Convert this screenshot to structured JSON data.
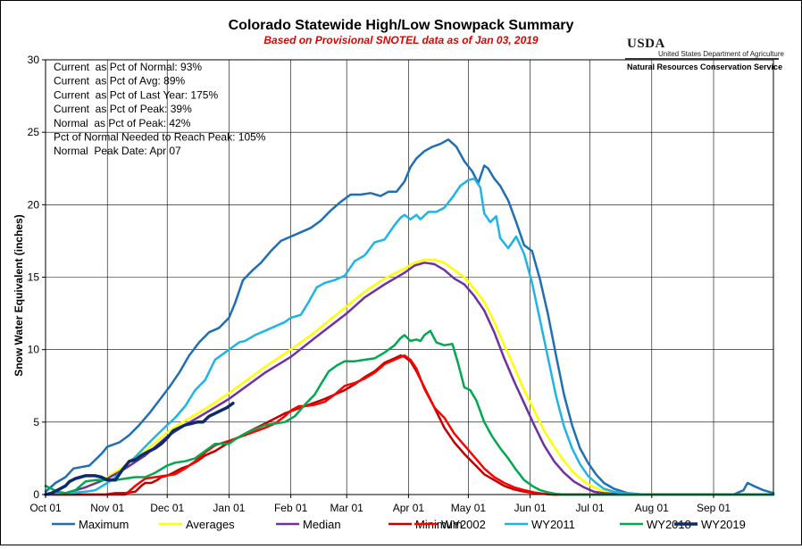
{
  "chart_data": {
    "type": "line",
    "title": "Colorado Statewide High/Low Snowpack Summary",
    "subtitle": "Based on Provisional SNOTEL data as of Jan 03, 2019",
    "ylabel": "Snow Water Equivalent (inches)",
    "xlabel": "",
    "ylim": [
      0,
      30
    ],
    "yticks": [
      "0",
      "5",
      "10",
      "15",
      "20",
      "25",
      "30"
    ],
    "xlim_days": [
      0,
      365
    ],
    "xticks": [
      "Oct 01",
      "Nov 01",
      "Dec 01",
      "Jan 01",
      "Feb 01",
      "Mar 01",
      "Apr 01",
      "May 01",
      "Jun 01",
      "Jul 01",
      "Aug 01",
      "Sep 01"
    ],
    "xtick_days": [
      0,
      31,
      61,
      92,
      123,
      151,
      182,
      212,
      243,
      273,
      304,
      335
    ],
    "grid": true,
    "legend_position": "bottom",
    "stats": [
      "Current  as Pct of Normal: 93%",
      "Current  as Pct of Avg: 89%",
      "Current  as Pct of Last Year: 175%",
      "Current  as Pct of Peak: 39%",
      "Normal  as Pct of Peak: 42%",
      "Pct of Normal Needed to Reach Peak: 105%",
      "Normal  Peak Date: Apr 07"
    ],
    "series": [
      {
        "name": "Maximum",
        "color": "#1F6FB4",
        "width": 2.5,
        "x": [
          0,
          5,
          10,
          14,
          18,
          22,
          25,
          28,
          31,
          33,
          37,
          42,
          47,
          52,
          57,
          62,
          67,
          72,
          77,
          82,
          87,
          92,
          95,
          99,
          104,
          108,
          113,
          118,
          123,
          128,
          133,
          138,
          143,
          148,
          153,
          158,
          163,
          168,
          172,
          176,
          180,
          183,
          186,
          190,
          194,
          198,
          202,
          206,
          210,
          214,
          217,
          220,
          222,
          225,
          228,
          232,
          236,
          240,
          244,
          248,
          252,
          256,
          260,
          264,
          268,
          272,
          276,
          280,
          285,
          292,
          300,
          310,
          320,
          330,
          340,
          345,
          350,
          352,
          355,
          360,
          365
        ],
        "y": [
          0.2,
          0.8,
          1.2,
          1.8,
          1.9,
          2.0,
          2.4,
          2.8,
          3.3,
          3.4,
          3.6,
          4.1,
          4.8,
          5.6,
          6.5,
          7.4,
          8.4,
          9.6,
          10.5,
          11.2,
          11.5,
          12.2,
          13.2,
          14.8,
          15.5,
          16.0,
          16.8,
          17.5,
          17.8,
          18.1,
          18.4,
          18.9,
          19.6,
          20.2,
          20.7,
          20.7,
          20.8,
          20.6,
          20.9,
          20.9,
          21.6,
          22.6,
          23.2,
          23.7,
          24.0,
          24.2,
          24.5,
          24.0,
          23.0,
          22.3,
          21.5,
          22.7,
          22.5,
          21.8,
          21.3,
          20.3,
          18.8,
          17.2,
          16.8,
          14.8,
          12.4,
          9.6,
          6.9,
          4.8,
          3.2,
          2.2,
          1.4,
          0.8,
          0.4,
          0.1,
          0,
          0,
          0,
          0,
          0,
          0,
          0.3,
          0.8,
          0.6,
          0.3,
          0.1
        ]
      },
      {
        "name": "Averages",
        "color": "#FFFF00",
        "width": 2.5,
        "x": [
          0,
          10,
          20,
          31,
          40,
          50,
          61,
          70,
          80,
          92,
          100,
          110,
          123,
          135,
          151,
          160,
          170,
          180,
          185,
          190,
          195,
          200,
          205,
          210,
          215,
          220,
          225,
          230,
          235,
          240,
          245,
          250,
          255,
          260,
          265,
          270,
          275,
          280,
          290,
          300,
          320,
          365
        ],
        "y": [
          0,
          0.1,
          0.5,
          1.2,
          2.0,
          3.0,
          4.3,
          5.1,
          5.9,
          7.0,
          7.8,
          8.8,
          10.0,
          11.2,
          13.0,
          14.0,
          14.9,
          15.6,
          16.0,
          16.2,
          16.2,
          16.0,
          15.5,
          15.0,
          14.2,
          13.3,
          11.9,
          10.3,
          8.8,
          7.2,
          5.8,
          4.4,
          3.3,
          2.3,
          1.5,
          0.9,
          0.5,
          0.25,
          0.05,
          0,
          0,
          0
        ]
      },
      {
        "name": "Median",
        "color": "#7030A0",
        "width": 2.5,
        "x": [
          0,
          10,
          20,
          31,
          40,
          50,
          61,
          70,
          80,
          92,
          100,
          110,
          123,
          135,
          151,
          160,
          170,
          180,
          185,
          190,
          195,
          200,
          205,
          210,
          215,
          220,
          225,
          230,
          235,
          240,
          245,
          250,
          255,
          260,
          265,
          270,
          275,
          280,
          290,
          300,
          320,
          365
        ],
        "y": [
          0,
          0.1,
          0.5,
          1.1,
          1.8,
          2.7,
          4.0,
          4.8,
          5.6,
          6.6,
          7.4,
          8.4,
          9.5,
          10.8,
          12.5,
          13.6,
          14.5,
          15.3,
          15.8,
          16.0,
          15.9,
          15.5,
          14.9,
          14.5,
          13.7,
          12.7,
          11.2,
          9.4,
          7.8,
          6.3,
          4.8,
          3.4,
          2.3,
          1.5,
          0.9,
          0.5,
          0.2,
          0.1,
          0,
          0,
          0,
          0
        ]
      },
      {
        "name": "Minimum",
        "color": "#C00000",
        "width": 2.5,
        "x": [
          0,
          20,
          30,
          35,
          40,
          45,
          48,
          50,
          53,
          56,
          58,
          61,
          64,
          68,
          72,
          76,
          80,
          85,
          92,
          100,
          110,
          120,
          130,
          140,
          150,
          155,
          160,
          165,
          170,
          175,
          178,
          180,
          183,
          186,
          190,
          195,
          200,
          205,
          210,
          215,
          220,
          225,
          230,
          235,
          240,
          245,
          250,
          255,
          260,
          270,
          365
        ],
        "y": [
          0,
          0,
          0,
          0.1,
          0.1,
          0.2,
          0.6,
          0.8,
          0.8,
          1.0,
          1.2,
          1.3,
          1.5,
          1.8,
          2.0,
          2.3,
          2.7,
          3.0,
          3.6,
          4.2,
          4.9,
          5.6,
          6.1,
          6.6,
          7.2,
          7.6,
          8.1,
          8.5,
          9.1,
          9.4,
          9.6,
          9.5,
          9.2,
          8.5,
          7.4,
          6.0,
          4.6,
          3.6,
          2.8,
          2.1,
          1.4,
          1.0,
          0.6,
          0.35,
          0.2,
          0.1,
          0.05,
          0,
          0,
          0,
          0
        ]
      },
      {
        "name": "WY2002",
        "color": "#FF0000",
        "width": 2.5,
        "x": [
          0,
          20,
          40,
          45,
          50,
          55,
          60,
          65,
          70,
          75,
          80,
          85,
          92,
          100,
          110,
          115,
          120,
          123,
          127,
          130,
          135,
          140,
          145,
          150,
          155,
          160,
          165,
          170,
          175,
          180,
          183,
          186,
          190,
          195,
          200,
          205,
          210,
          215,
          220,
          225,
          230,
          235,
          240,
          245,
          250,
          255,
          260,
          265,
          365
        ],
        "y": [
          0,
          0,
          0,
          0.6,
          1.1,
          1.2,
          1.3,
          1.4,
          1.8,
          2.3,
          2.9,
          3.4,
          3.7,
          4.1,
          4.6,
          4.9,
          5.4,
          5.8,
          6.1,
          6.1,
          6.2,
          6.4,
          6.9,
          7.5,
          7.7,
          8.0,
          8.4,
          9.0,
          9.3,
          9.6,
          9.3,
          8.7,
          7.3,
          6.0,
          5.3,
          4.2,
          3.4,
          2.6,
          1.8,
          1.2,
          0.8,
          0.5,
          0.3,
          0.15,
          0.05,
          0,
          0,
          0,
          0
        ]
      },
      {
        "name": "WY2011",
        "color": "#1EB4E6",
        "width": 2.5,
        "x": [
          0,
          10,
          20,
          25,
          31,
          35,
          40,
          45,
          50,
          55,
          61,
          65,
          70,
          75,
          80,
          85,
          92,
          97,
          100,
          105,
          110,
          115,
          120,
          123,
          128,
          132,
          136,
          140,
          145,
          150,
          155,
          160,
          165,
          170,
          175,
          178,
          180,
          183,
          186,
          188,
          192,
          196,
          200,
          204,
          208,
          212,
          215,
          218,
          220,
          223,
          226,
          228,
          232,
          236,
          240,
          244,
          248,
          252,
          256,
          260,
          264,
          268,
          272,
          276,
          280,
          285,
          290,
          300,
          320,
          365
        ],
        "y": [
          0,
          0.1,
          0.2,
          0.3,
          0.8,
          1.2,
          2.0,
          2.6,
          3.3,
          4.0,
          4.8,
          5.3,
          6.1,
          7.2,
          7.9,
          9.3,
          10.0,
          10.5,
          10.6,
          11.0,
          11.3,
          11.6,
          11.9,
          12.2,
          12.4,
          13.3,
          14.3,
          14.6,
          14.8,
          15.1,
          16.1,
          16.5,
          17.4,
          17.6,
          18.6,
          19.1,
          19.3,
          19.0,
          19.3,
          19.0,
          19.5,
          19.5,
          19.8,
          20.5,
          21.3,
          21.7,
          21.8,
          21.2,
          19.4,
          18.8,
          19.2,
          17.7,
          17.0,
          17.8,
          16.6,
          14.6,
          12.0,
          9.4,
          6.8,
          4.7,
          3.2,
          2.1,
          1.3,
          0.8,
          0.4,
          0.2,
          0.1,
          0,
          0,
          0
        ]
      },
      {
        "name": "WY2018",
        "color": "#00A94F",
        "width": 2.5,
        "x": [
          0,
          3,
          6,
          10,
          15,
          20,
          25,
          31,
          35,
          40,
          45,
          50,
          55,
          61,
          65,
          70,
          75,
          80,
          85,
          92,
          95,
          100,
          105,
          110,
          115,
          120,
          125,
          130,
          135,
          138,
          142,
          146,
          150,
          155,
          160,
          165,
          170,
          175,
          178,
          180,
          183,
          186,
          188,
          190,
          193,
          196,
          200,
          204,
          207,
          210,
          213,
          216,
          220,
          224,
          228,
          232,
          236,
          240,
          244,
          248,
          252,
          256,
          260,
          265,
          270,
          365
        ],
        "y": [
          0.6,
          0.4,
          0.2,
          0.1,
          0.3,
          0.9,
          1.0,
          1.0,
          1.0,
          1.1,
          1.2,
          1.2,
          1.5,
          2.0,
          2.2,
          2.3,
          2.5,
          3.0,
          3.5,
          3.5,
          3.8,
          4.2,
          4.5,
          4.8,
          4.9,
          5.0,
          5.4,
          6.2,
          6.9,
          7.6,
          8.5,
          8.9,
          9.2,
          9.2,
          9.3,
          9.4,
          9.8,
          10.3,
          10.8,
          11.0,
          10.6,
          10.7,
          10.6,
          11.0,
          11.3,
          10.5,
          10.3,
          10.4,
          9.0,
          7.4,
          7.2,
          6.5,
          5.0,
          4.0,
          3.2,
          2.5,
          1.7,
          1.0,
          0.6,
          0.3,
          0.15,
          0.05,
          0,
          0,
          0,
          0
        ]
      },
      {
        "name": "WY2019",
        "color": "#0D2A6B",
        "width": 3.5,
        "x": [
          0,
          3,
          6,
          10,
          12,
          15,
          20,
          25,
          28,
          31,
          35,
          38,
          42,
          45,
          48,
          52,
          55,
          58,
          61,
          64,
          67,
          70,
          73,
          76,
          79,
          82,
          85,
          88,
          91,
          94
        ],
        "y": [
          0,
          0.1,
          0.3,
          0.6,
          0.9,
          1.1,
          1.3,
          1.3,
          1.2,
          1.0,
          1.0,
          1.6,
          2.3,
          2.4,
          2.7,
          3.0,
          3.2,
          3.5,
          3.9,
          4.4,
          4.6,
          4.8,
          4.9,
          5.0,
          5.0,
          5.4,
          5.6,
          5.8,
          6.0,
          6.3
        ]
      }
    ]
  },
  "logo": {
    "mark": "USDA",
    "dept": "United States Department of Agriculture",
    "agency": "Natural Resources Conservation Service"
  }
}
